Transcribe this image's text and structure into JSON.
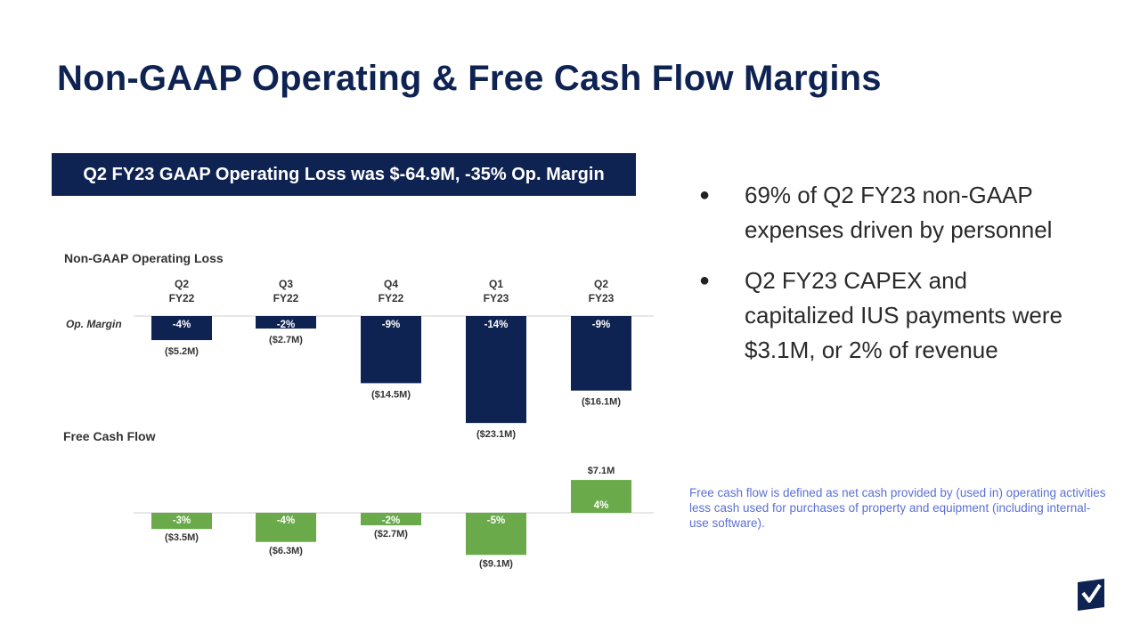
{
  "slide": {
    "title": "Non-GAAP Operating & Free Cash Flow Margins",
    "banner": "Q2 FY23 GAAP Operating Loss was $-64.9M, -35% Op. Margin",
    "bullets": [
      "69% of Q2 FY23 non-GAAP expenses driven by personnel",
      "Q2 FY23 CAPEX and capitalized IUS payments were $3.1M, or 2% of revenue"
    ],
    "footnote": "Free cash flow is defined as net cash provided by (used in) operating activities less cash used for purchases of property and equipment (including internal-use software).",
    "logo_icon": "checkmark-logo-icon"
  },
  "chart_data": [
    {
      "type": "bar",
      "title": "Non-GAAP Operating Loss",
      "row_label": "Op. Margin",
      "categories": [
        "Q2\nFY22",
        "Q3\nFY22",
        "Q4\nFY22",
        "Q1\nFY23",
        "Q2\nFY23"
      ],
      "values": [
        -5.2,
        -2.7,
        -14.5,
        -23.1,
        -16.1
      ],
      "value_labels": [
        "($5.2M)",
        "($2.7M)",
        "($14.5M)",
        "($23.1M)",
        "($16.1M)"
      ],
      "margin_labels": [
        "-4%",
        "-2%",
        "-9%",
        "-14%",
        "-9%"
      ],
      "unit": "$M",
      "color": "#0f2353"
    },
    {
      "type": "bar",
      "title": "Free Cash Flow",
      "categories": [
        "Q2\nFY22",
        "Q3\nFY22",
        "Q4\nFY22",
        "Q1\nFY23",
        "Q2\nFY23"
      ],
      "values": [
        -3.5,
        -6.3,
        -2.7,
        -9.1,
        7.1
      ],
      "value_labels": [
        "($3.5M)",
        "($6.3M)",
        "($2.7M)",
        "($9.1M)",
        "$7.1M"
      ],
      "margin_labels": [
        "-3%",
        "-4%",
        "-2%",
        "-5%",
        "4%"
      ],
      "unit": "$M",
      "color": "#6aaa4a"
    }
  ]
}
